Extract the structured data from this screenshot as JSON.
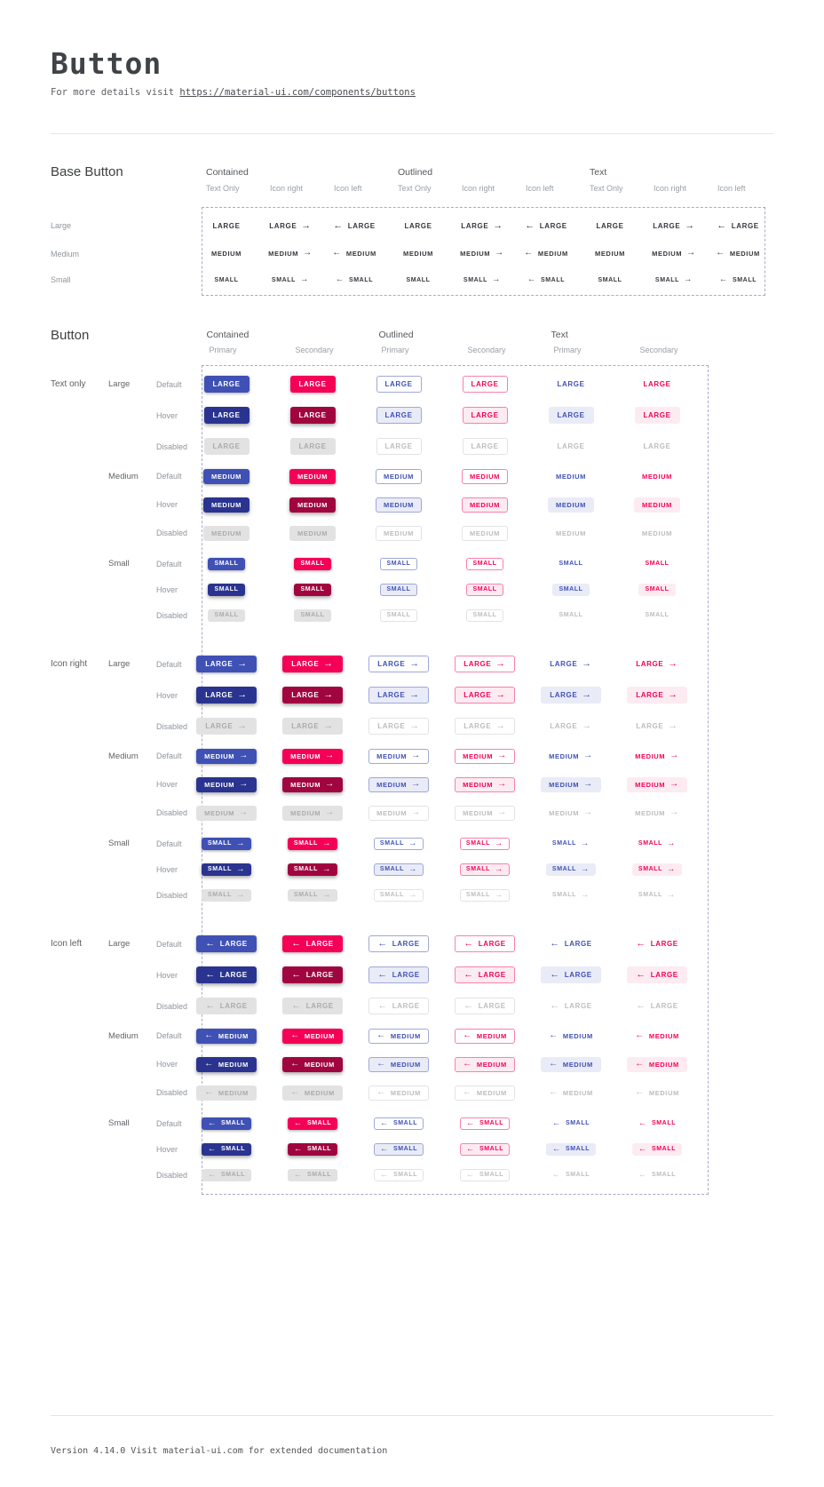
{
  "page": {
    "title": "Button",
    "subtitle_prefix": "For more details visit ",
    "subtitle_link": "https://material-ui.com/components/buttons",
    "footer": "Version 4.14.0  Visit material-ui.com for extended documentation"
  },
  "colors": {
    "primary": "#3f51b5",
    "primary_hover": "#2a3490",
    "secondary": "#f50057",
    "secondary_hover": "#a1053f",
    "primary_tint": "#e9ebf7",
    "secondary_tint": "#fdebf2",
    "disabled_bg": "#e2e2e2",
    "disabled_text": "#ababab",
    "dashed_border": "#a6abc8"
  },
  "base_section": {
    "heading": "Base Button",
    "column_groups": [
      {
        "label": "Contained",
        "subcolumns": [
          "Text Only",
          "Icon right",
          "Icon left"
        ]
      },
      {
        "label": "Outlined",
        "subcolumns": [
          "Text Only",
          "Icon right",
          "Icon left"
        ]
      },
      {
        "label": "Text",
        "subcolumns": [
          "Text Only",
          "Icon right",
          "Icon left"
        ]
      }
    ],
    "rows": [
      {
        "label": "Large",
        "button_text": "LARGE"
      },
      {
        "label": "Medium",
        "button_text": "MEDIUM"
      },
      {
        "label": "Small",
        "button_text": "SMALL"
      }
    ]
  },
  "button_section": {
    "heading": "Button",
    "column_groups": [
      {
        "label": "Contained",
        "subcolumns": [
          "Primary",
          "Secondary"
        ]
      },
      {
        "label": "Outlined",
        "subcolumns": [
          "Primary",
          "Secondary"
        ]
      },
      {
        "label": "Text",
        "subcolumns": [
          "Primary",
          "Secondary"
        ]
      }
    ],
    "icon_groups": [
      "Text only",
      "Icon right",
      "Icon left"
    ],
    "sizes": [
      {
        "label": "Large",
        "button_text": "LARGE"
      },
      {
        "label": "Medium",
        "button_text": "MEDIUM"
      },
      {
        "label": "Small",
        "button_text": "SMALL"
      }
    ],
    "states": [
      "Default",
      "Hover",
      "Disabled"
    ],
    "icons": {
      "right": "→",
      "left": "←"
    }
  }
}
